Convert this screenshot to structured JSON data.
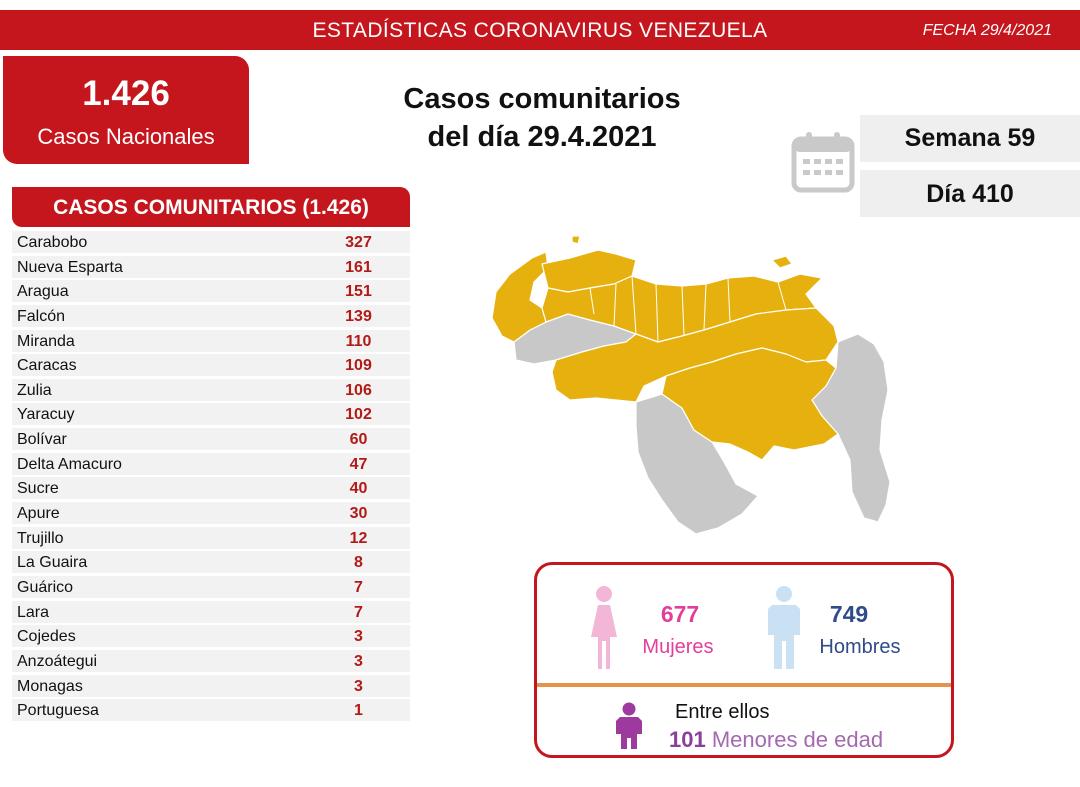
{
  "header": {
    "title": "ESTADÍSTICAS CORONAVIRUS VENEZUELA",
    "date": "FECHA 29/4/2021"
  },
  "national": {
    "count": "1.426",
    "label": "Casos Nacionales"
  },
  "headline": {
    "line1": "Casos comunitarios",
    "line2": "del día 29.4.2021"
  },
  "calendar": {
    "icon": "calendar-icon",
    "week": "Semana 59",
    "day": "Día 410"
  },
  "table": {
    "header": "CASOS COMUNITARIOS (1.426)",
    "rows": [
      {
        "state": "Carabobo",
        "cases": "327"
      },
      {
        "state": "Nueva Esparta",
        "cases": "161"
      },
      {
        "state": "Aragua",
        "cases": "151"
      },
      {
        "state": "Falcón",
        "cases": "139"
      },
      {
        "state": "Miranda",
        "cases": "110"
      },
      {
        "state": "Caracas",
        "cases": "109"
      },
      {
        "state": "Zulia",
        "cases": "106"
      },
      {
        "state": "Yaracuy",
        "cases": "102"
      },
      {
        "state": "Bolívar",
        "cases": "60"
      },
      {
        "state": "Delta Amacuro",
        "cases": "47"
      },
      {
        "state": "Sucre",
        "cases": "40"
      },
      {
        "state": "Apure",
        "cases": "30"
      },
      {
        "state": "Trujillo",
        "cases": "12"
      },
      {
        "state": "La Guaira",
        "cases": "8"
      },
      {
        "state": "Guárico",
        "cases": "7"
      },
      {
        "state": "Lara",
        "cases": "7"
      },
      {
        "state": "Cojedes",
        "cases": "3"
      },
      {
        "state": "Anzoátegui",
        "cases": "3"
      },
      {
        "state": "Monagas",
        "cases": "3"
      },
      {
        "state": "Portuguesa",
        "cases": "1"
      }
    ]
  },
  "map": {
    "icon": "venezuela-map",
    "affected_color": "#e6b10e",
    "unaffected_color": "#c8c8c8"
  },
  "gender": {
    "female_count": "677",
    "female_label": "Mujeres",
    "male_count": "749",
    "male_label": "Hombres",
    "among_label": "Entre ellos",
    "minors_count": "101",
    "minors_label": "Menores de edad",
    "female_icon": "woman-icon",
    "male_icon": "man-icon",
    "child_icon": "child-icon"
  },
  "colors": {
    "brand_red": "#c4161c",
    "female": "#e23f9c",
    "male": "#2f4b8a",
    "minor": "#a469b0",
    "divider": "#e8914a"
  }
}
